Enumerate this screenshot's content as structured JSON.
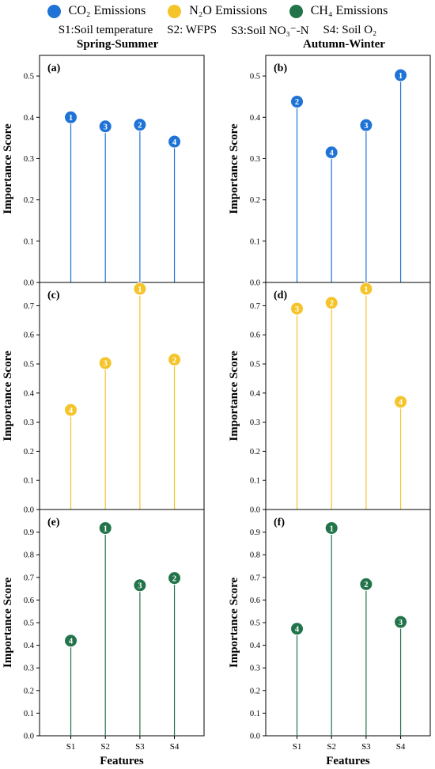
{
  "legend": {
    "items": [
      {
        "label": "CO₂ Emissions",
        "color": "#1f73d6"
      },
      {
        "label": "N₂O Emissions",
        "color": "#f5c42a"
      },
      {
        "label": "CH₄ Emissions",
        "color": "#23744a"
      }
    ],
    "definitions": [
      "S1:Soil temperature",
      "S2: WFPS",
      "S3:Soil NO₃⁻-N",
      "S4: Soil O₂"
    ]
  },
  "columns": [
    "Spring-Summer",
    "Autumn-Winter"
  ],
  "xlabel": "Features",
  "ylabel": "Importance Score",
  "chart_data": [
    {
      "panel": "(a)",
      "type": "lollipop",
      "gas": "CO2",
      "categories": [
        "S1",
        "S2",
        "S3",
        "S4"
      ],
      "values": [
        0.4,
        0.378,
        0.382,
        0.341
      ],
      "ranks": [
        1,
        3,
        2,
        4
      ],
      "color": "#1f73d6",
      "ylim": [
        0,
        0.55
      ],
      "yticks": [
        0.0,
        0.1,
        0.2,
        0.3,
        0.4,
        0.5
      ]
    },
    {
      "panel": "(b)",
      "type": "lollipop",
      "gas": "CO2",
      "categories": [
        "S1",
        "S2",
        "S3",
        "S4"
      ],
      "values": [
        0.438,
        0.315,
        0.381,
        0.502
      ],
      "ranks": [
        2,
        4,
        3,
        1
      ],
      "color": "#1f73d6",
      "ylim": [
        0,
        0.55
      ],
      "yticks": [
        0.0,
        0.1,
        0.2,
        0.3,
        0.4,
        0.5
      ]
    },
    {
      "panel": "(c)",
      "type": "lollipop",
      "gas": "N2O",
      "categories": [
        "S1",
        "S2",
        "S3",
        "S4"
      ],
      "values": [
        0.342,
        0.503,
        0.758,
        0.515
      ],
      "ranks": [
        4,
        3,
        1,
        2
      ],
      "color": "#f5c42a",
      "ylim": [
        0,
        0.78
      ],
      "yticks": [
        0.0,
        0.1,
        0.2,
        0.3,
        0.4,
        0.5,
        0.6,
        0.7
      ]
    },
    {
      "panel": "(d)",
      "type": "lollipop",
      "gas": "N2O",
      "categories": [
        "S1",
        "S2",
        "S3",
        "S4"
      ],
      "values": [
        0.69,
        0.71,
        0.758,
        0.37
      ],
      "ranks": [
        3,
        2,
        1,
        4
      ],
      "color": "#f5c42a",
      "ylim": [
        0,
        0.78
      ],
      "yticks": [
        0.0,
        0.1,
        0.2,
        0.3,
        0.4,
        0.5,
        0.6,
        0.7
      ]
    },
    {
      "panel": "(e)",
      "type": "lollipop",
      "gas": "CH4",
      "categories": [
        "S1",
        "S2",
        "S3",
        "S4"
      ],
      "values": [
        0.42,
        0.918,
        0.665,
        0.697
      ],
      "ranks": [
        4,
        1,
        3,
        2
      ],
      "color": "#23744a",
      "ylim": [
        0,
        1.0
      ],
      "yticks": [
        0.0,
        0.1,
        0.2,
        0.3,
        0.4,
        0.5,
        0.6,
        0.7,
        0.8,
        0.9
      ]
    },
    {
      "panel": "(f)",
      "type": "lollipop",
      "gas": "CH4",
      "categories": [
        "S1",
        "S2",
        "S3",
        "S4"
      ],
      "values": [
        0.473,
        0.918,
        0.67,
        0.503
      ],
      "ranks": [
        4,
        1,
        2,
        3
      ],
      "color": "#23744a",
      "ylim": [
        0,
        1.0
      ],
      "yticks": [
        0.0,
        0.1,
        0.2,
        0.3,
        0.4,
        0.5,
        0.6,
        0.7,
        0.8,
        0.9
      ]
    }
  ]
}
